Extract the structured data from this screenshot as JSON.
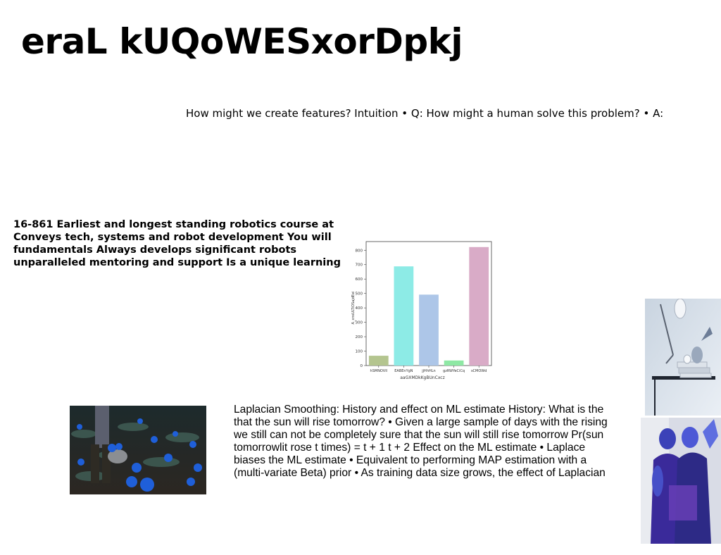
{
  "slide": {
    "title": "eraL kUQoWESxorDpkj",
    "intuition_text": "How might we create features? Intuition • Q: How might a human solve this problem? • A:",
    "course_text": "16-861 Earliest and longest standing robotics course at Conveys tech, systems and robot development You will fundamentals Always develops significant robots unparalleled mentoring and support Is a unique learning",
    "laplace_text": "Laplacian Smoothing: History and effect on ML estimate History: What is the that the sun will rise tomorrow? • Given a large sample of days with the rising we still can not be completely sure that the sun will still rise tomorrow Pr(sun tomorrowlit rose t times) = t + 1 t + 2 Effect on the ML estimate • Laplace biases the ML estimate • Equivalent to performing MAP estimation with a (multi-variate Beta) prior • As training data size grows, the effect of Laplacian"
  },
  "chart_data": {
    "type": "bar",
    "categories": [
      "hSMNOVIl",
      "EABEnYgN",
      "jjHhHLn",
      "gzRWYeCiCq",
      "sCMOWd"
    ],
    "values": [
      68,
      688,
      492,
      35,
      822
    ],
    "colors": [
      "#b4c58f",
      "#8debe6",
      "#adc6e8",
      "#8ee8a4",
      "#d9abc7"
    ],
    "xlabel": "aaGXMDkKgBUnCxcz",
    "ylabel": "A_xnsULTiOSajdEei",
    "ylim": [
      0,
      860
    ],
    "yticks": [
      0,
      100,
      200,
      300,
      400,
      500,
      600,
      700,
      800
    ],
    "grid": false
  },
  "images": {
    "field_photo": "field-photo",
    "lamp_photo": "lamp-photo",
    "blue_people_photo": "blue-people-photo"
  }
}
